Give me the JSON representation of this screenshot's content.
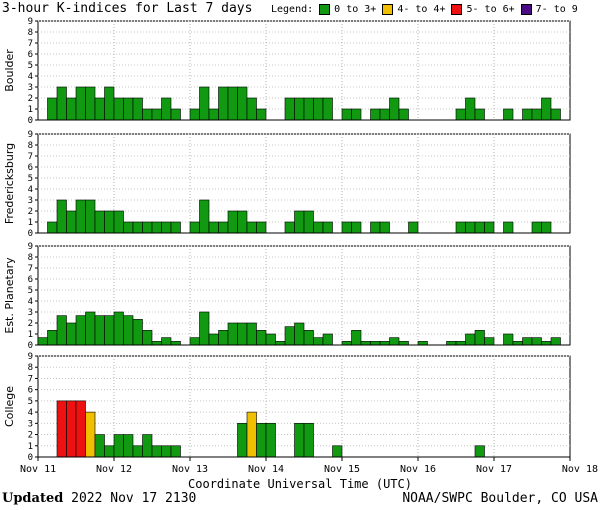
{
  "header": {
    "title": "3-hour K-indices for Last 7 days",
    "legend_label": "Legend:",
    "legend": [
      {
        "label": "0 to 3+",
        "color": "#119911"
      },
      {
        "label": "4- to 4+",
        "color": "#f0c000"
      },
      {
        "label": "5- to 6+",
        "color": "#ee1111"
      },
      {
        "label": "7- to 9",
        "color": "#4b0b82"
      }
    ]
  },
  "footer": {
    "updated_label": "Updated",
    "updated_value": "2022 Nov 17 2130",
    "credit": "NOAA/SWPC Boulder, CO USA"
  },
  "chart_data": {
    "type": "bar",
    "xlabel": "Coordinate Universal Time (UTC)",
    "ylim": [
      0,
      9
    ],
    "yticks": [
      "0",
      "1",
      "2",
      "3",
      "4",
      "5",
      "6",
      "7",
      "8",
      "9"
    ],
    "date_labels": [
      "Nov 11",
      "Nov 12",
      "Nov 13",
      "Nov 14",
      "Nov 15",
      "Nov 16",
      "Nov 17",
      "Nov 18"
    ],
    "colors": {
      "low": "#119911",
      "mid": "#f0c000",
      "high": "#ee1111",
      "severe": "#4b0b82"
    },
    "series": [
      {
        "name": "Boulder",
        "values": [
          0,
          2,
          3,
          2,
          3,
          3,
          2,
          3,
          2,
          2,
          2,
          1,
          1,
          2,
          1,
          0,
          1,
          3,
          1,
          3,
          3,
          3,
          2,
          1,
          0,
          0,
          2,
          2,
          2,
          2,
          2,
          0,
          1,
          1,
          0,
          1,
          1,
          2,
          1,
          0,
          0,
          0,
          0,
          0,
          1,
          2,
          1,
          0,
          0,
          1,
          0,
          1,
          1,
          2,
          1,
          0
        ]
      },
      {
        "name": "Fredericksburg",
        "values": [
          0,
          1,
          3,
          2,
          3,
          3,
          2,
          2,
          2,
          1,
          1,
          1,
          1,
          1,
          1,
          0,
          1,
          3,
          1,
          1,
          2,
          2,
          1,
          1,
          0,
          0,
          1,
          2,
          2,
          1,
          1,
          0,
          1,
          1,
          0,
          1,
          1,
          0,
          0,
          1,
          0,
          0,
          0,
          0,
          1,
          1,
          1,
          1,
          0,
          1,
          0,
          0,
          1,
          1,
          0,
          0
        ]
      },
      {
        "name": "Est. Planetary",
        "values": [
          0.67,
          1.33,
          2.67,
          2,
          2.67,
          3,
          2.67,
          2.67,
          3,
          2.67,
          2.33,
          1.33,
          0.33,
          0.67,
          0.33,
          0,
          0.67,
          3,
          1,
          1.33,
          2,
          2,
          2,
          1.33,
          1,
          0.33,
          1.67,
          2,
          1.33,
          0.67,
          1,
          0,
          0.33,
          1.33,
          0.33,
          0.33,
          0.33,
          0.67,
          0.33,
          0,
          0.33,
          0,
          0,
          0.33,
          0.33,
          1,
          1.33,
          0.67,
          0,
          1,
          0.33,
          0.67,
          0.67,
          0.33,
          0.67,
          0
        ]
      },
      {
        "name": "College",
        "values": [
          0,
          0,
          5,
          5,
          5,
          4,
          2,
          1,
          2,
          2,
          1,
          2,
          1,
          1,
          1,
          0,
          0,
          0,
          0,
          0,
          0,
          3,
          4,
          3,
          3,
          0,
          0,
          3,
          3,
          0,
          0,
          1,
          0,
          0,
          0,
          0,
          0,
          0,
          0,
          0,
          0,
          0,
          0,
          0,
          0,
          0,
          1,
          0,
          0,
          0,
          0,
          0,
          0,
          0,
          0,
          0
        ]
      }
    ]
  }
}
